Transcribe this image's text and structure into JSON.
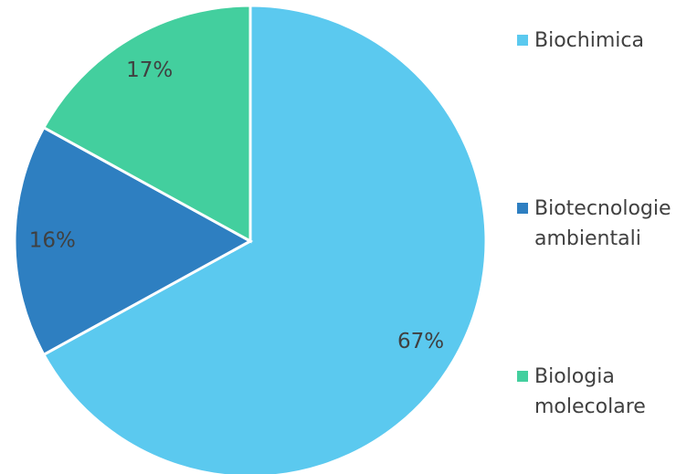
{
  "chart_data": {
    "type": "pie",
    "categories": [
      "Biochimica",
      "Biotecnologie ambientali",
      "Biologia molecolare"
    ],
    "values": [
      67,
      16,
      17
    ],
    "value_labels": [
      "67%",
      "16%",
      "17%"
    ],
    "colors": [
      "#5bc9ef",
      "#2e7fc1",
      "#43cf9e"
    ],
    "legend": "right"
  }
}
